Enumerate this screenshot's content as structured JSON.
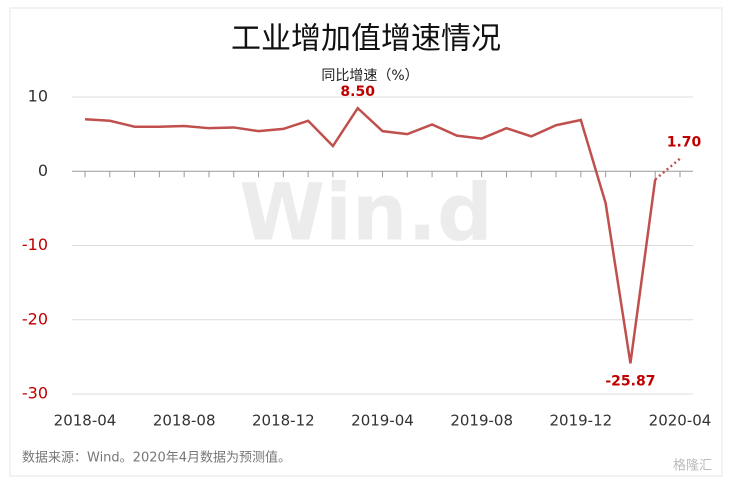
{
  "chart_data": {
    "type": "line",
    "title": "工业增加值增速情况",
    "subtitle": "同比增速（%）",
    "note": "数据来源：Wind。2020年4月数据为预测值。",
    "watermark": "Win.d",
    "logo": "格隆汇",
    "categories": [
      "2018-04",
      null,
      null,
      null,
      "2018-08",
      null,
      null,
      null,
      "2018-12",
      null,
      null,
      null,
      "2019-04",
      null,
      null,
      null,
      "2019-08",
      null,
      null,
      null,
      "2019-12",
      null,
      null,
      null,
      "2020-04"
    ],
    "values": [
      7.0,
      6.8,
      6.0,
      6.0,
      6.1,
      5.8,
      5.9,
      5.4,
      5.7,
      6.8,
      3.4,
      8.5,
      5.4,
      5.0,
      6.3,
      4.8,
      4.4,
      5.8,
      4.7,
      6.2,
      6.9,
      -4.3,
      -25.87,
      -1.1,
      1.7
    ],
    "value_labels": [
      null,
      null,
      null,
      null,
      null,
      null,
      null,
      null,
      null,
      null,
      null,
      "8.50",
      null,
      null,
      null,
      null,
      null,
      null,
      null,
      null,
      null,
      null,
      "-25.87",
      null,
      "1.70"
    ],
    "color": "#c0504d",
    "dashed_last_segment": true,
    "ylim": [
      -30,
      10
    ],
    "yticks": [
      10,
      0,
      -10,
      -20,
      -30
    ],
    "grid": true
  }
}
